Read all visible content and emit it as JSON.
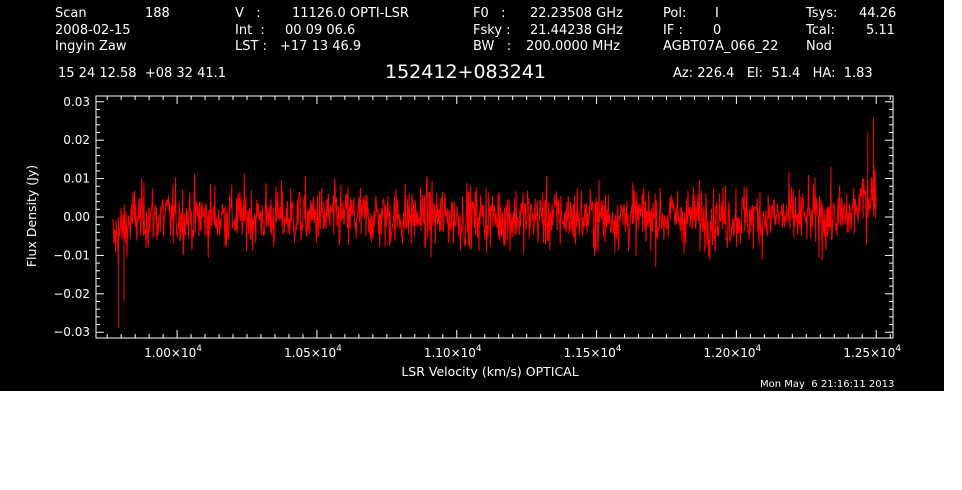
{
  "header": {
    "scan_label": "Scan",
    "scan_value": "188",
    "date": "2008-02-15",
    "observer": "Ingyin Zaw",
    "v_label": "V   :",
    "v_value": "11126.0 OPTI-LSR",
    "int_label": "Int  :",
    "int_value": "00 09 06.6",
    "lst_label": "LST :",
    "lst_value": "+17 13 46.9",
    "f0_label": "F0   :",
    "f0_value": "22.23508 GHz",
    "fsky_label": "Fsky :",
    "fsky_value": "21.44238 GHz",
    "bw_label": "BW   :",
    "bw_value": "200.0000 MHz",
    "pol_label": "Pol:",
    "pol_value": "I",
    "if_label": "IF :",
    "if_value": "0",
    "project": "AGBT07A_066_22",
    "tsys_label": "Tsys:",
    "tsys_value": "44.26",
    "tcal_label": "Tcal:",
    "tcal_value": "5.11",
    "mode": "Nod",
    "coords": "15 24 12.58  +08 32 41.1",
    "source_name": "152412+083241",
    "az_el_ha": "Az: 226.4   El:  51.4   HA:  1.83"
  },
  "timestamp": "Mon May  6 21:16:11 2013",
  "colors": {
    "background": "#000000",
    "foreground": "#ffffff",
    "series": "#ff0000"
  },
  "chart_data": {
    "type": "line",
    "xlabel": "LSR Velocity (km/s) OPTICAL",
    "ylabel": "Flux Density (Jy)",
    "xlim": [
      9710,
      12560
    ],
    "ylim": [
      -0.0315,
      0.0315
    ],
    "x_ticks": [
      10000,
      10500,
      11000,
      11500,
      12000,
      12500
    ],
    "x_tick_labels": [
      {
        "mant": "1.00×10",
        "exp": "4"
      },
      {
        "mant": "1.05×10",
        "exp": "4"
      },
      {
        "mant": "1.10×10",
        "exp": "4"
      },
      {
        "mant": "1.15×10",
        "exp": "4"
      },
      {
        "mant": "1.20×10",
        "exp": "4"
      },
      {
        "mant": "1.25×10",
        "exp": "4"
      }
    ],
    "y_ticks": [
      -0.03,
      -0.02,
      -0.01,
      0.0,
      0.01,
      0.02,
      0.03
    ],
    "y_tick_labels": [
      "−0.03",
      "−0.02",
      "−0.01",
      "0.00",
      "0.01",
      "0.02",
      "0.03"
    ],
    "series": [
      {
        "x_start": 9770,
        "x_end": 12500,
        "n_points": 1400,
        "noise_rms": 0.0055,
        "mean": 0.0,
        "edge_features": [
          {
            "x": 9790,
            "y": -0.029
          },
          {
            "x": 9810,
            "y": -0.022
          },
          {
            "x": 12490,
            "y": 0.026
          },
          {
            "x": 12470,
            "y": 0.022
          }
        ]
      }
    ],
    "grid": false,
    "legend": "none"
  }
}
